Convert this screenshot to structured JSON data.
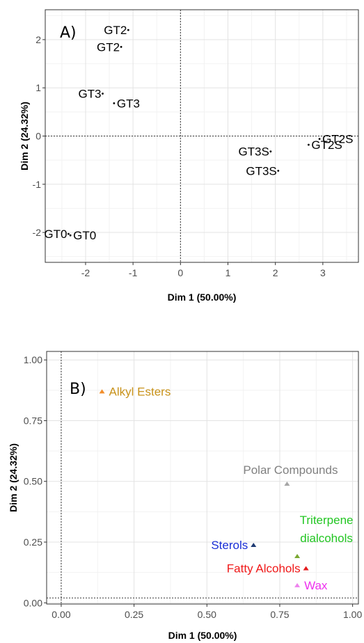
{
  "chart_data": [
    {
      "type": "scatter",
      "panel_label": "A)",
      "xlabel": "Dim 1 (50.00%)",
      "ylabel": "Dim 2 (24.32%)",
      "xlim": [
        -2.85,
        3.75
      ],
      "ylim": [
        -2.62,
        2.62
      ],
      "xticks": [
        -2,
        -1,
        0,
        1,
        2,
        3
      ],
      "yticks": [
        -2,
        -1,
        0,
        1,
        2
      ],
      "xtick_labels": [
        "-2",
        "-1",
        "0",
        "1",
        "2",
        "3"
      ],
      "ytick_labels": [
        "-2",
        "-1",
        "0",
        "1",
        "2"
      ],
      "grid": true,
      "reference_lines": {
        "x": 0,
        "y": 0
      },
      "point_color": "#000000",
      "points": [
        {
          "label": "GT2",
          "x": -1.1,
          "y": 2.2,
          "anchor": "end"
        },
        {
          "label": "GT2",
          "x": -1.25,
          "y": 1.85,
          "anchor": "end"
        },
        {
          "label": "GT3",
          "x": -1.64,
          "y": 0.88,
          "anchor": "end"
        },
        {
          "label": "GT3",
          "x": -1.4,
          "y": 0.68,
          "anchor": "start"
        },
        {
          "label": "GT3S",
          "x": 1.9,
          "y": -0.32,
          "anchor": "end"
        },
        {
          "label": "GT3S",
          "x": 2.06,
          "y": -0.72,
          "anchor": "end"
        },
        {
          "label": "GT2S",
          "x": 2.93,
          "y": -0.06,
          "anchor": "start"
        },
        {
          "label": "GT2S",
          "x": 2.7,
          "y": -0.18,
          "anchor": "start"
        },
        {
          "label": "GT0",
          "x": -2.36,
          "y": -2.03,
          "anchor": "end"
        },
        {
          "label": "GT0",
          "x": -2.32,
          "y": -2.06,
          "anchor": "start"
        }
      ]
    },
    {
      "type": "scatter",
      "panel_label": "B)",
      "xlabel": "Dim 1 (50.00%)",
      "ylabel": "Dim 2 (24.32%)",
      "xlim": [
        -0.05,
        1.02
      ],
      "ylim": [
        -0.005,
        1.035
      ],
      "xticks": [
        0,
        0.25,
        0.5,
        0.75,
        1.0
      ],
      "yticks": [
        0,
        0.25,
        0.5,
        0.75,
        1.0
      ],
      "xtick_labels": [
        "0.00",
        "0.25",
        "0.50",
        "0.75",
        "1.00"
      ],
      "ytick_labels": [
        "0.00",
        "0.25",
        "0.50",
        "0.75",
        "1.00"
      ],
      "grid": true,
      "reference_lines": {
        "x": 0,
        "y": 0.02
      },
      "points": [
        {
          "label": "Alkyl Esters",
          "x": 0.14,
          "y": 0.87,
          "color": "#f28e2b",
          "text_color": "#c8921a",
          "anchor": "start"
        },
        {
          "label": "Polar Compounds",
          "x": 0.775,
          "y": 0.49,
          "color": "#a6a6a6",
          "text_color": "#808080",
          "anchor": "middle"
        },
        {
          "label": "Sterols",
          "x": 0.66,
          "y": 0.238,
          "color": "#1f3b73",
          "text_color": "#1a2fd6",
          "anchor": "end"
        },
        {
          "label": "Triterpene dialcohols",
          "x": 0.81,
          "y": 0.192,
          "color": "#7aa832",
          "text_color": "#22c622",
          "anchor": "middle",
          "lines": [
            "Triterpene",
            "dialcohols"
          ]
        },
        {
          "label": "Fatty Alcohols",
          "x": 0.84,
          "y": 0.142,
          "color": "#e41a1c",
          "text_color": "#f01818",
          "anchor": "end"
        },
        {
          "label": "Wax",
          "x": 0.81,
          "y": 0.072,
          "color": "#ee82ee",
          "text_color": "#ee2fee",
          "anchor": "start"
        }
      ]
    }
  ]
}
